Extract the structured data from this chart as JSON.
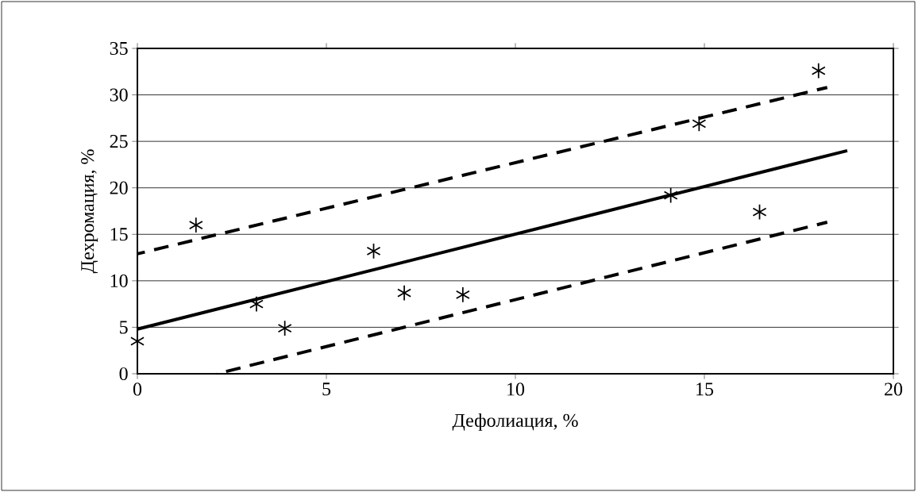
{
  "chart_data": {
    "type": "scatter",
    "xlabel": "Дефолиация, %",
    "ylabel": "Дехромация, %",
    "xlim": [
      0,
      20
    ],
    "ylim": [
      0,
      35
    ],
    "xticks": [
      0,
      5,
      10,
      15,
      20
    ],
    "yticks": [
      0,
      5,
      10,
      15,
      20,
      25,
      30,
      35
    ],
    "grid": "y",
    "marker": "cross",
    "series": [
      {
        "color": "#000000",
        "x": [
          0,
          1.55,
          3.15,
          3.9,
          6.25,
          7.06,
          8.61,
          14.11,
          14.86,
          16.46,
          18.02
        ],
        "values": [
          3.5,
          16.0,
          7.5,
          4.9,
          13.2,
          8.7,
          8.5,
          19.2,
          26.9,
          17.4,
          32.6
        ]
      },
      {
        "type": "line",
        "color": "#000000",
        "marker": "none",
        "line_style": "solid",
        "x": [
          0,
          18.78
        ],
        "values": [
          4.8,
          24.0
        ]
      },
      {
        "type": "line",
        "color": "#000000",
        "marker": "none",
        "line_style": "dashed",
        "x": [
          0,
          18.25
        ],
        "values": [
          12.9,
          30.8
        ]
      },
      {
        "type": "line",
        "color": "#000000",
        "marker": "none",
        "line_style": "dashed",
        "x": [
          2.1,
          18.25
        ],
        "values": [
          0,
          16.3
        ]
      }
    ]
  }
}
